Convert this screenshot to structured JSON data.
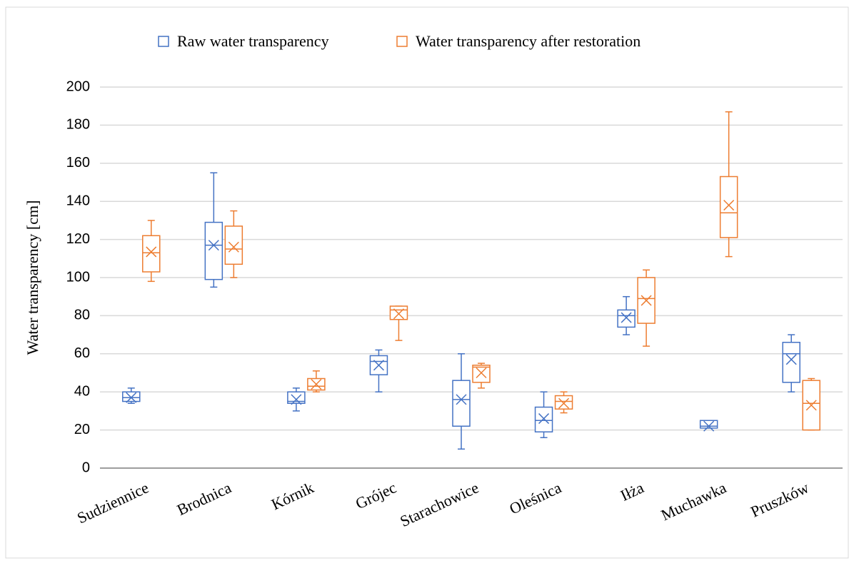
{
  "chart_data": {
    "type": "box",
    "ylabel": "Water transparency [cm]",
    "categories": [
      "Sudziennice",
      "Brodnica",
      "Kórnik",
      "Grójec",
      "Starachowice",
      "Oleśnica",
      "Iłża",
      "Muchawka",
      "Pruszków"
    ],
    "series": [
      {
        "name": "Raw water transparency",
        "color": "#4472c4",
        "min": [
          34,
          95,
          30,
          40,
          10,
          16,
          70,
          21,
          40
        ],
        "q1": [
          35,
          99,
          34,
          49,
          22,
          19,
          74,
          21,
          45
        ],
        "median": [
          37,
          117,
          35,
          56,
          36,
          25,
          80,
          22,
          60
        ],
        "q3": [
          40,
          129,
          40,
          59,
          46,
          32,
          83,
          25,
          66
        ],
        "max": [
          42,
          155,
          42,
          62,
          60,
          40,
          90,
          25,
          70
        ],
        "mean": [
          37,
          117,
          36,
          54,
          36,
          26,
          79,
          22,
          57
        ]
      },
      {
        "name": "Water transparency after restoration",
        "color": "#ed7d31",
        "min": [
          98,
          100,
          40,
          67,
          42,
          29,
          64,
          111,
          20
        ],
        "q1": [
          103,
          107,
          41,
          78,
          45,
          31,
          76,
          121,
          20
        ],
        "median": [
          113,
          115,
          43,
          83,
          53,
          35,
          89,
          134,
          34
        ],
        "q3": [
          122,
          127,
          47,
          85,
          54,
          38,
          100,
          153,
          46
        ],
        "max": [
          130,
          135,
          51,
          85,
          55,
          40,
          104,
          187,
          47
        ],
        "mean": [
          113.5,
          116,
          44,
          81,
          50,
          34,
          88,
          138,
          33
        ]
      }
    ],
    "ylim": [
      0,
      200
    ],
    "yticks": [
      0,
      20,
      40,
      60,
      80,
      100,
      120,
      140,
      160,
      180,
      200
    ],
    "grid": true,
    "legend": "top"
  }
}
